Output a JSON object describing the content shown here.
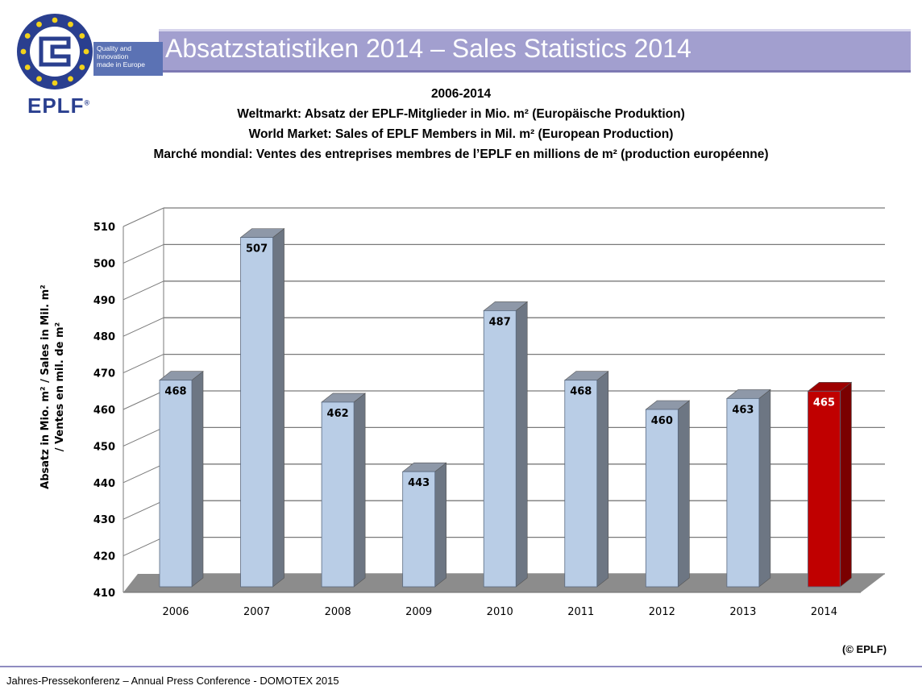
{
  "header": {
    "title": "Absatzstatistiken 2014 – Sales Statistics 2014",
    "bar_color": "#a29fcf"
  },
  "logo": {
    "tagline": [
      "Quality and",
      "Innovation",
      "made in Europe"
    ],
    "wordmark": "EPLF",
    "registered": "®"
  },
  "chart_data": {
    "type": "bar",
    "title_lines": [
      "2006-2014",
      "Weltmarkt: Absatz der EPLF-Mitglieder in Mio. m² (Europäische Produktion)",
      "World Market: Sales of EPLF Members in Mil.  m² (European Production)",
      "Marché mondial:  Ventes des entreprises membres de l’EPLF en millions de m² (production  européenne)"
    ],
    "ylabel": "Absatz in Mio. m² / Sales in Mil. m² / Ventes en mil. de m²",
    "ylabel_lines": [
      "Absatz in Mio. m² / Sales in Mil. m²",
      "/ Ventes en mil. de m²"
    ],
    "xlabel": "",
    "categories": [
      "2006",
      "2007",
      "2008",
      "2009",
      "2010",
      "2011",
      "2012",
      "2013",
      "2014"
    ],
    "values": [
      468,
      507,
      462,
      443,
      487,
      468,
      460,
      463,
      465
    ],
    "ylim": [
      410,
      510
    ],
    "yticks": [
      410,
      420,
      430,
      440,
      450,
      460,
      470,
      480,
      490,
      500,
      510
    ],
    "grid": true,
    "bar_color": "#b9cde6",
    "highlight_color": "#c00000",
    "highlight_category": "2014"
  },
  "copyright": "(© EPLF)",
  "footer": "Jahres-Pressekonferenz – Annual Press Conference - DOMOTEX 2015"
}
